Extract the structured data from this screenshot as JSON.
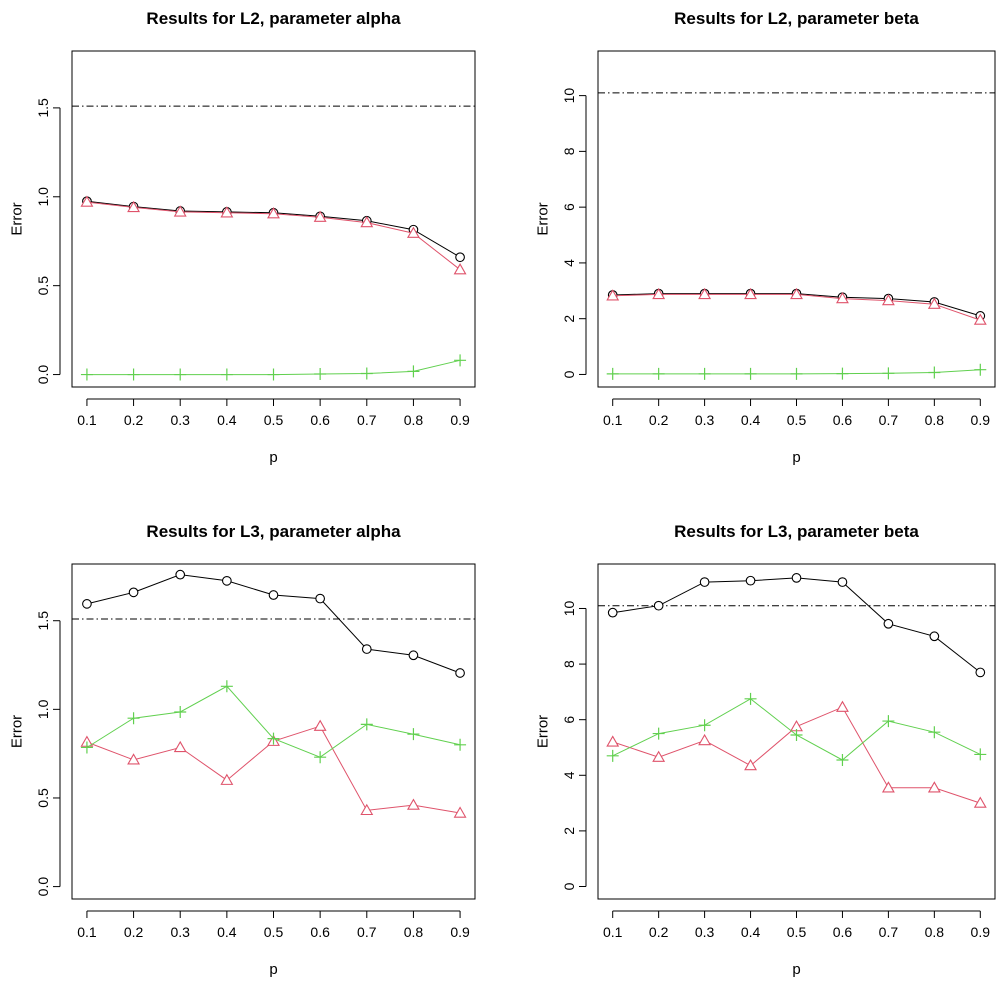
{
  "colors": {
    "series_1": "#000000",
    "series_2": "#df536b",
    "series_3": "#61d04f",
    "reference_line": "#000000"
  },
  "chart_data": [
    {
      "type": "line",
      "title": "Results for L2, parameter alpha",
      "xlabel": "p",
      "ylabel": "Error",
      "x": [
        0.1,
        0.2,
        0.3,
        0.4,
        0.5,
        0.6,
        0.7,
        0.8,
        0.9
      ],
      "x_ticks": [
        "0.1",
        "0.2",
        "0.3",
        "0.4",
        "0.5",
        "0.6",
        "0.7",
        "0.8",
        "0.9"
      ],
      "xlim": [
        0.068,
        0.932
      ],
      "ylim": [
        -0.07,
        1.82
      ],
      "y_ticks": [
        "0.0",
        "0.5",
        "1.0",
        "1.5"
      ],
      "y_tick_values": [
        0,
        0.5,
        1.0,
        1.5
      ],
      "reference_line": 1.51,
      "series": [
        {
          "marker": "circle",
          "color_key": "series_1",
          "values": [
            0.975,
            0.945,
            0.92,
            0.915,
            0.91,
            0.89,
            0.865,
            0.815,
            0.66
          ]
        },
        {
          "marker": "triangle",
          "color_key": "series_2",
          "values": [
            0.97,
            0.94,
            0.915,
            0.91,
            0.905,
            0.885,
            0.855,
            0.795,
            0.59
          ]
        },
        {
          "marker": "plus",
          "color_key": "series_3",
          "values": [
            0.0,
            0.0,
            0.0,
            0.0,
            0.0,
            0.003,
            0.006,
            0.018,
            0.08
          ]
        }
      ]
    },
    {
      "type": "line",
      "title": "Results for L2, parameter beta",
      "xlabel": "p",
      "ylabel": "Error",
      "x": [
        0.1,
        0.2,
        0.3,
        0.4,
        0.5,
        0.6,
        0.7,
        0.8,
        0.9
      ],
      "x_ticks": [
        "0.1",
        "0.2",
        "0.3",
        "0.4",
        "0.5",
        "0.6",
        "0.7",
        "0.8",
        "0.9"
      ],
      "xlim": [
        0.068,
        0.932
      ],
      "ylim": [
        -0.45,
        11.6
      ],
      "y_ticks": [
        "0",
        "2",
        "4",
        "6",
        "8",
        "10"
      ],
      "y_tick_values": [
        0,
        2,
        4,
        6,
        8,
        10
      ],
      "reference_line": 10.1,
      "series": [
        {
          "marker": "circle",
          "color_key": "series_1",
          "values": [
            2.85,
            2.9,
            2.9,
            2.9,
            2.9,
            2.77,
            2.72,
            2.6,
            2.1
          ]
        },
        {
          "marker": "triangle",
          "color_key": "series_2",
          "values": [
            2.82,
            2.87,
            2.87,
            2.87,
            2.87,
            2.72,
            2.65,
            2.52,
            1.95
          ]
        },
        {
          "marker": "plus",
          "color_key": "series_3",
          "values": [
            0.02,
            0.02,
            0.02,
            0.02,
            0.02,
            0.03,
            0.04,
            0.07,
            0.17
          ]
        }
      ]
    },
    {
      "type": "line",
      "title": "Results for L3, parameter alpha",
      "xlabel": "p",
      "ylabel": "Error",
      "x": [
        0.1,
        0.2,
        0.3,
        0.4,
        0.5,
        0.6,
        0.7,
        0.8,
        0.9
      ],
      "x_ticks": [
        "0.1",
        "0.2",
        "0.3",
        "0.4",
        "0.5",
        "0.6",
        "0.7",
        "0.8",
        "0.9"
      ],
      "xlim": [
        0.068,
        0.932
      ],
      "ylim": [
        -0.07,
        1.82
      ],
      "y_ticks": [
        "0.0",
        "0.5",
        "1.0",
        "1.5"
      ],
      "y_tick_values": [
        0,
        0.5,
        1.0,
        1.5
      ],
      "reference_line": 1.51,
      "series": [
        {
          "marker": "circle",
          "color_key": "series_1",
          "values": [
            1.595,
            1.66,
            1.76,
            1.725,
            1.645,
            1.625,
            1.34,
            1.305,
            1.205
          ]
        },
        {
          "marker": "triangle",
          "color_key": "series_2",
          "values": [
            0.815,
            0.715,
            0.785,
            0.6,
            0.82,
            0.905,
            0.43,
            0.46,
            0.415
          ]
        },
        {
          "marker": "plus",
          "color_key": "series_3",
          "values": [
            0.785,
            0.95,
            0.985,
            1.13,
            0.835,
            0.73,
            0.915,
            0.86,
            0.8
          ]
        }
      ]
    },
    {
      "type": "line",
      "title": "Results for L3, parameter beta",
      "xlabel": "p",
      "ylabel": "Error",
      "x": [
        0.1,
        0.2,
        0.3,
        0.4,
        0.5,
        0.6,
        0.7,
        0.8,
        0.9
      ],
      "x_ticks": [
        "0.1",
        "0.2",
        "0.3",
        "0.4",
        "0.5",
        "0.6",
        "0.7",
        "0.8",
        "0.9"
      ],
      "xlim": [
        0.068,
        0.932
      ],
      "ylim": [
        -0.45,
        11.6
      ],
      "y_ticks": [
        "0",
        "2",
        "4",
        "6",
        "8",
        "10"
      ],
      "y_tick_values": [
        0,
        2,
        4,
        6,
        8,
        10
      ],
      "reference_line": 10.1,
      "series": [
        {
          "marker": "circle",
          "color_key": "series_1",
          "values": [
            9.85,
            10.1,
            10.95,
            11.0,
            11.1,
            10.95,
            9.45,
            9.0,
            7.7
          ]
        },
        {
          "marker": "triangle",
          "color_key": "series_2",
          "values": [
            5.2,
            4.65,
            5.25,
            4.35,
            5.75,
            6.45,
            3.55,
            3.55,
            3.0
          ]
        },
        {
          "marker": "plus",
          "color_key": "series_3",
          "values": [
            4.7,
            5.5,
            5.8,
            6.75,
            5.45,
            4.55,
            5.95,
            5.55,
            4.75
          ]
        }
      ]
    }
  ]
}
